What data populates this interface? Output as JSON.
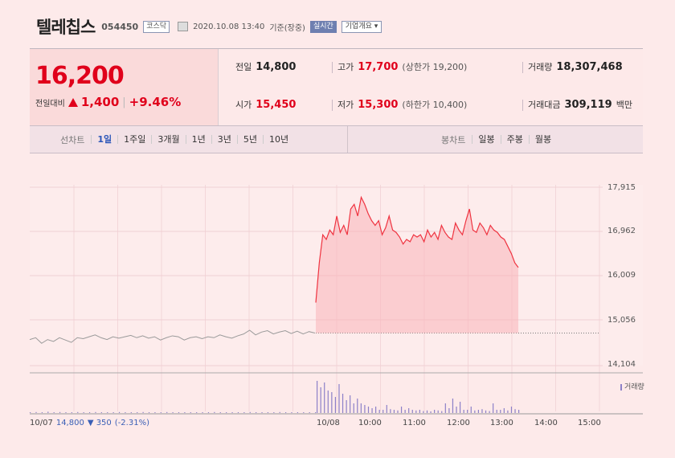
{
  "header": {
    "name": "텔레칩스",
    "code": "054450",
    "market": "코스닥",
    "datetime": "2020.10.08 13:40",
    "basis": "기준(장중)",
    "realtime": "실시간",
    "overview": "기업개요 ▾"
  },
  "summary": {
    "price": "16,200",
    "diff_label": "전일대비",
    "diff": "1,400",
    "diff_pct": "+9.46%",
    "prev_label": "전일",
    "prev": "14,800",
    "high_label": "고가",
    "high": "17,700",
    "upper_limit": "(상한가 19,200)",
    "volume_label": "거래량",
    "volume": "18,307,468",
    "open_label": "시가",
    "open": "15,450",
    "low_label": "저가",
    "low": "15,300",
    "lower_limit": "(하한가 10,400)",
    "amount_label": "거래대금",
    "amount": "309,119",
    "amount_unit": "백만"
  },
  "tabs": {
    "line_title": "선차트",
    "line_tabs": [
      "1일",
      "1주일",
      "3개월",
      "1년",
      "3년",
      "5년",
      "10년"
    ],
    "candle_title": "봉차트",
    "candle_tabs": [
      "일봉",
      "주봉",
      "월봉"
    ]
  },
  "legend": {
    "volume": "거래량"
  },
  "chart_data": {
    "type": "line",
    "y_ticks": [
      "17,915",
      "16,962",
      "16,009",
      "15,056",
      "14,104"
    ],
    "ylim": [
      14104,
      17915
    ],
    "prev_day": {
      "date": "10/07",
      "close": "14,800",
      "change": "▼ 350",
      "change_pct": "(-2.31%)",
      "values": [
        14660,
        14700,
        14580,
        14660,
        14620,
        14700,
        14650,
        14600,
        14700,
        14680,
        14720,
        14760,
        14700,
        14660,
        14720,
        14690,
        14720,
        14750,
        14700,
        14740,
        14690,
        14720,
        14650,
        14700,
        14740,
        14720,
        14650,
        14700,
        14720,
        14680,
        14720,
        14700,
        14760,
        14720,
        14690,
        14740,
        14780,
        14860,
        14760,
        14820,
        14850,
        14780,
        14820,
        14850,
        14790,
        14840,
        14780,
        14830,
        14800
      ]
    },
    "today": {
      "date": "10/08",
      "x_ticks": [
        "10/08",
        "10:00",
        "11:00",
        "12:00",
        "13:00",
        "14:00",
        "15:00"
      ],
      "base": 14800,
      "values": [
        15450,
        16300,
        16900,
        16800,
        17000,
        16900,
        17300,
        16950,
        17100,
        16900,
        17450,
        17550,
        17300,
        17700,
        17550,
        17350,
        17200,
        17100,
        17200,
        16900,
        17050,
        17300,
        17000,
        16950,
        16850,
        16700,
        16800,
        16750,
        16900,
        16850,
        16900,
        16750,
        17000,
        16850,
        16950,
        16800,
        17100,
        16950,
        16850,
        16800,
        17150,
        17000,
        16900,
        17200,
        17450,
        17000,
        16950,
        17150,
        17050,
        16900,
        17100,
        17000,
        16950,
        16850,
        16800,
        16650,
        16500,
        16300,
        16200
      ]
    },
    "volume": [
      0.02,
      0.03,
      0.02,
      0.04,
      0.02,
      0.03,
      0.01,
      0.02,
      0.03,
      0.02,
      0.02,
      0.03,
      0.02,
      0.01,
      0.02,
      0.03,
      0.02,
      0.01,
      0.02,
      0.03,
      0.02,
      0.02,
      0.01,
      0.03,
      0.02,
      0.02,
      0.01,
      0.02,
      0.02,
      0.01,
      0.02,
      0.03,
      0.02,
      0.02,
      0.01,
      0.02,
      0.02,
      0.03,
      0.02,
      0.01,
      0.02,
      0.02,
      0.03,
      0.02,
      0.02,
      0.01,
      0.02,
      0.02,
      0.01,
      1.0,
      0.8,
      0.95,
      0.7,
      0.65,
      0.5,
      0.9,
      0.6,
      0.4,
      0.55,
      0.3,
      0.45,
      0.3,
      0.25,
      0.2,
      0.15,
      0.2,
      0.1,
      0.1,
      0.25,
      0.12,
      0.1,
      0.08,
      0.2,
      0.1,
      0.15,
      0.1,
      0.08,
      0.1,
      0.06,
      0.08,
      0.05,
      0.1,
      0.08,
      0.06,
      0.3,
      0.15,
      0.45,
      0.2,
      0.35,
      0.1,
      0.1,
      0.2,
      0.08,
      0.1,
      0.12,
      0.08,
      0.06,
      0.3,
      0.1,
      0.1,
      0.15,
      0.08,
      0.2,
      0.12,
      0.1
    ]
  },
  "colors": {
    "up": "#e0001b",
    "down": "#3a5fb6",
    "volume": "#8c80c8"
  }
}
